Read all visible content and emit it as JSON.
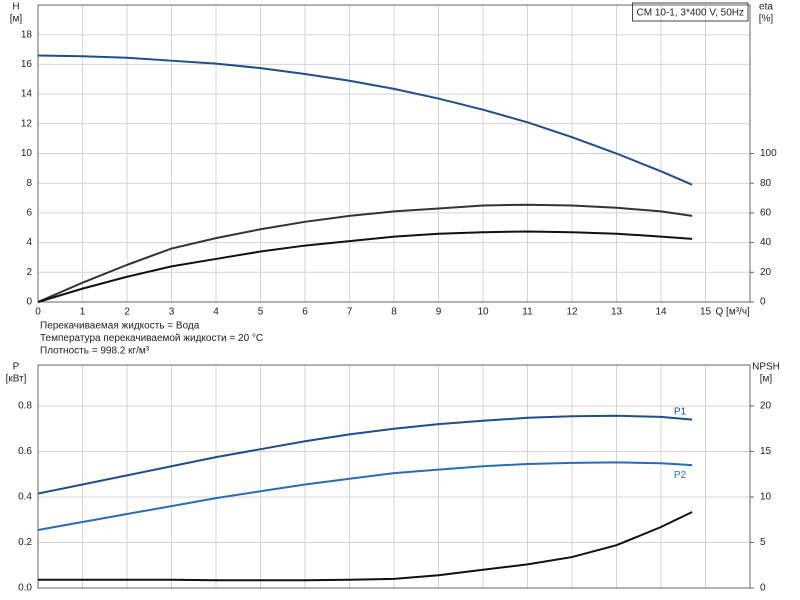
{
  "chart_data": [
    {
      "type": "line",
      "title": "CM 10-1, 3*400 V, 50Hz",
      "y_label": "H",
      "y_unit": "[м]",
      "y2_label": "eta",
      "y2_unit": "[%]",
      "x_label": "Q [м³/ч]",
      "xlim": [
        0,
        16
      ],
      "xticks": [
        0,
        1,
        2,
        3,
        4,
        5,
        6,
        7,
        8,
        9,
        10,
        11,
        12,
        13,
        14,
        15
      ],
      "show_xtick_labels": true,
      "ylim": [
        0,
        20
      ],
      "yticks": [
        0,
        2,
        4,
        6,
        8,
        10,
        12,
        14,
        16,
        18
      ],
      "y2lim": [
        0,
        200
      ],
      "y2ticks": [
        0,
        20,
        40,
        60,
        80,
        100
      ],
      "grid": true,
      "x": [
        0,
        1,
        2,
        3,
        4,
        5,
        6,
        7,
        8,
        9,
        10,
        11,
        12,
        13,
        14,
        14.7
      ],
      "series": [
        {
          "color": "#1f4e8c",
          "values": [
            16.6,
            16.55,
            16.45,
            16.25,
            16.05,
            15.75,
            15.35,
            14.9,
            14.35,
            13.7,
            12.95,
            12.1,
            11.1,
            10.0,
            8.8,
            7.9
          ]
        },
        {
          "color": "#333333",
          "axis": "y2",
          "values": [
            0,
            13,
            25,
            36,
            43,
            49,
            54,
            58,
            61,
            63,
            65,
            65.5,
            65,
            63.5,
            61,
            58
          ]
        },
        {
          "color": "#111111",
          "axis": "y2",
          "values": [
            0,
            9,
            17,
            24,
            29,
            34,
            38,
            41,
            44,
            46,
            47,
            47.5,
            47,
            46,
            44,
            42.5
          ]
        }
      ],
      "notes": [
        "Перекачиваемая жидкость = Вода",
        "Температура перекачиваемой жидкости = 20 °C",
        "Плотность = 998.2 кг/м³"
      ]
    },
    {
      "type": "line",
      "y_label": "P",
      "y_unit": "[кВт]",
      "y2_label": "NPSH",
      "y2_unit": "[м]",
      "xlim": [
        0,
        16
      ],
      "xticks": [
        0,
        1,
        2,
        3,
        4,
        5,
        6,
        7,
        8,
        9,
        10,
        11,
        12,
        13,
        14,
        15
      ],
      "show_xtick_labels": false,
      "ylim": [
        0,
        0.98
      ],
      "yticks": [
        {
          "value": 0,
          "label": "0.0"
        },
        0.2,
        0.4,
        0.6,
        0.8
      ],
      "y2lim": [
        0,
        24.5
      ],
      "y2ticks": [
        0,
        5,
        10,
        15,
        20
      ],
      "grid": true,
      "x": [
        0,
        1,
        2,
        3,
        4,
        5,
        6,
        7,
        8,
        9,
        10,
        11,
        12,
        13,
        14,
        14.7
      ],
      "series": [
        {
          "name": "P1",
          "color": "#1f4e8c",
          "values": [
            0.415,
            0.455,
            0.495,
            0.535,
            0.575,
            0.61,
            0.645,
            0.675,
            0.7,
            0.72,
            0.735,
            0.748,
            0.755,
            0.757,
            0.752,
            0.74
          ]
        },
        {
          "name": "P2",
          "color": "#2a6db5",
          "values": [
            0.255,
            0.29,
            0.325,
            0.36,
            0.395,
            0.425,
            0.455,
            0.48,
            0.505,
            0.52,
            0.535,
            0.545,
            0.55,
            0.552,
            0.548,
            0.54
          ]
        },
        {
          "color": "#111111",
          "axis": "y2",
          "values": [
            0.9,
            0.9,
            0.9,
            0.9,
            0.85,
            0.85,
            0.85,
            0.9,
            1.0,
            1.4,
            2.0,
            2.6,
            3.4,
            4.7,
            6.7,
            8.35
          ]
        }
      ]
    }
  ]
}
